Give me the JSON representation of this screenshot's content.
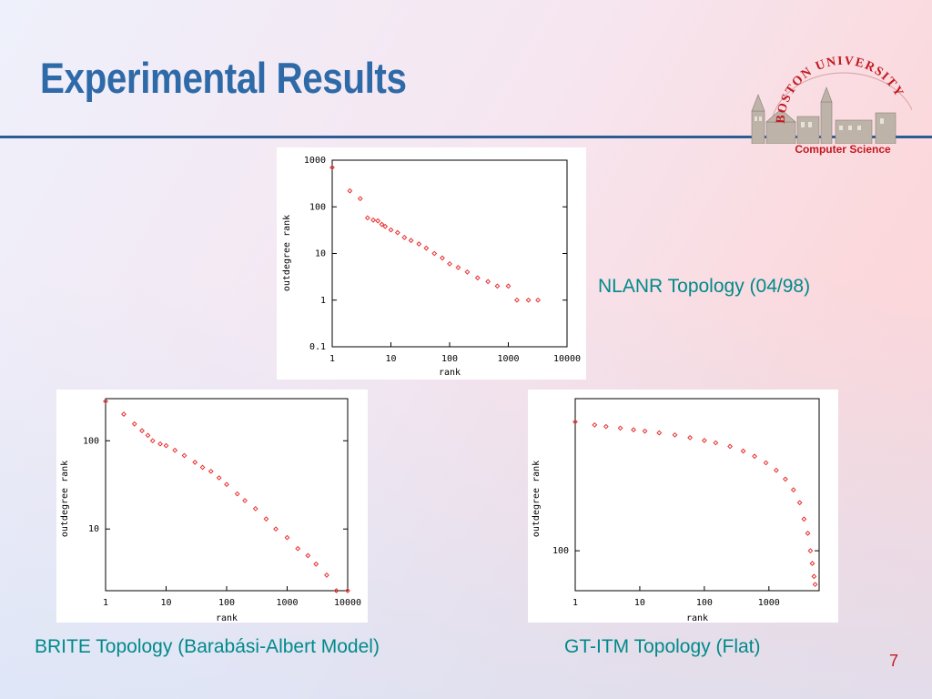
{
  "slide": {
    "title": "Experimental Results",
    "page_number": "7",
    "department": "Computer Science",
    "logo_text": "BOSTON UNIVERSITY",
    "accent_color": "#2f6aa8",
    "rule_color": "#2a5d94",
    "caption_color": "#008a8a",
    "brand_red": "#c3181f"
  },
  "chart_data": [
    {
      "type": "scatter",
      "caption": "NLANR Topology (04/98)",
      "xlabel": "rank",
      "ylabel": "outdegree rank",
      "xscale": "log",
      "yscale": "log",
      "xlim": [
        1,
        10000
      ],
      "ylim": [
        0.1,
        1000
      ],
      "xticks": [
        "1",
        "10",
        "100",
        "1000",
        "10000"
      ],
      "yticks": [
        "0.1",
        "1",
        "10",
        "100",
        "1000"
      ],
      "grid": false,
      "marker_color": "#e83030",
      "points": [
        [
          1,
          700
        ],
        [
          2,
          220
        ],
        [
          3,
          150
        ],
        [
          4,
          58
        ],
        [
          5,
          52
        ],
        [
          6,
          50
        ],
        [
          7,
          42
        ],
        [
          8,
          38
        ],
        [
          10,
          32
        ],
        [
          13,
          28
        ],
        [
          17,
          22
        ],
        [
          22,
          19
        ],
        [
          30,
          16
        ],
        [
          40,
          13
        ],
        [
          55,
          10
        ],
        [
          75,
          8
        ],
        [
          100,
          6
        ],
        [
          140,
          5
        ],
        [
          200,
          4
        ],
        [
          300,
          3
        ],
        [
          450,
          2.5
        ],
        [
          650,
          2
        ],
        [
          1000,
          2
        ],
        [
          1400,
          1
        ],
        [
          2200,
          1
        ],
        [
          3200,
          1
        ]
      ]
    },
    {
      "type": "scatter",
      "caption": "BRITE Topology (Barabási-Albert Model)",
      "xlabel": "rank",
      "ylabel": "outdegree rank",
      "xscale": "log",
      "yscale": "log",
      "xlim": [
        1,
        10000
      ],
      "ylim": [
        2,
        300
      ],
      "xticks": [
        "1",
        "10",
        "100",
        "1000",
        "10000"
      ],
      "yticks": [
        "10",
        "100"
      ],
      "grid": false,
      "marker_color": "#e83030",
      "points": [
        [
          1,
          280
        ],
        [
          2,
          200
        ],
        [
          3,
          155
        ],
        [
          4,
          130
        ],
        [
          5,
          115
        ],
        [
          6,
          100
        ],
        [
          8,
          92
        ],
        [
          10,
          88
        ],
        [
          14,
          78
        ],
        [
          20,
          68
        ],
        [
          30,
          57
        ],
        [
          40,
          50
        ],
        [
          55,
          45
        ],
        [
          75,
          38
        ],
        [
          100,
          32
        ],
        [
          150,
          25
        ],
        [
          200,
          21
        ],
        [
          300,
          17
        ],
        [
          450,
          13
        ],
        [
          650,
          10
        ],
        [
          1000,
          8
        ],
        [
          1500,
          6
        ],
        [
          2200,
          5
        ],
        [
          3000,
          4
        ],
        [
          4500,
          3
        ],
        [
          6500,
          2
        ],
        [
          10000,
          2
        ]
      ]
    },
    {
      "type": "scatter",
      "caption": "GT-ITM Topology (Flat)",
      "xlabel": "rank",
      "ylabel": "outdegree rank",
      "xscale": "log",
      "yscale": "log",
      "xlim": [
        1,
        6000
      ],
      "ylim": [
        60,
        700
      ],
      "xticks": [
        "1",
        "10",
        "100",
        "1000"
      ],
      "yticks": [
        "100"
      ],
      "grid": false,
      "marker_color": "#e83030",
      "points": [
        [
          1,
          520
        ],
        [
          2,
          500
        ],
        [
          3,
          490
        ],
        [
          5,
          480
        ],
        [
          8,
          470
        ],
        [
          12,
          462
        ],
        [
          20,
          452
        ],
        [
          35,
          440
        ],
        [
          60,
          425
        ],
        [
          100,
          410
        ],
        [
          150,
          398
        ],
        [
          250,
          380
        ],
        [
          400,
          358
        ],
        [
          600,
          335
        ],
        [
          900,
          308
        ],
        [
          1300,
          280
        ],
        [
          1800,
          250
        ],
        [
          2400,
          218
        ],
        [
          3000,
          185
        ],
        [
          3500,
          150
        ],
        [
          4000,
          125
        ],
        [
          4400,
          100
        ],
        [
          4700,
          85
        ],
        [
          5000,
          72
        ],
        [
          5200,
          65
        ]
      ]
    }
  ]
}
